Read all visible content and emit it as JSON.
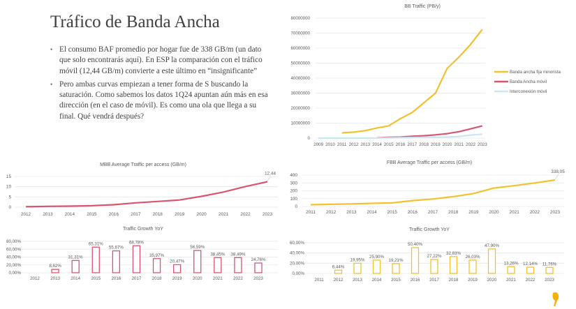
{
  "slide": {
    "title": "Tráfico de Banda Ancha",
    "bullets": [
      "El consumo BAF promedio por hogar fue de 338 GB/m (un dato que solo encontrarás aquí). En ESP la comparación con el tráfico móvil (12,44 GB/m) convierte a este último en “insignificante”",
      "Pero ambas curvas empiezan a tener forma de S buscando la saturación. Como sabemos los datos 1Q24 apuntan aún más en esa dirección (en el caso de móvil). Es como una ola que llega a su final. Qué vendrá después?"
    ],
    "logo": "yellow-comma-logo"
  },
  "colors": {
    "fixed": "#F2C12E",
    "mobile": "#D9546E",
    "interconnect": "#C9E6F2",
    "grid": "#E6E6E6"
  },
  "chart_data": [
    {
      "id": "bb",
      "type": "line",
      "title": "BB Traffic (PB/y)",
      "categories": [
        "2009",
        "2010",
        "2011",
        "2012",
        "2013",
        "2014",
        "2015",
        "2016",
        "2017",
        "2018",
        "2019",
        "2020",
        "2021",
        "2022",
        "2023"
      ],
      "yticks": [
        "0",
        "10000000",
        "20000000",
        "30000000",
        "40000000",
        "50000000",
        "60000000",
        "70000000",
        "80000000"
      ],
      "ylim": [
        0,
        80000000
      ],
      "grid": true,
      "legend": "right",
      "series": [
        {
          "name": "Banda ancha fija minorista",
          "color": "#F2C12E",
          "values": [
            null,
            null,
            3500000,
            4000000,
            5000000,
            6800000,
            8200000,
            13000000,
            17000000,
            23500000,
            30000000,
            46500000,
            54000000,
            62500000,
            72500000
          ]
        },
        {
          "name": "Banda Ancha móvil",
          "color": "#D9546E",
          "values": [
            null,
            null,
            null,
            null,
            null,
            200000,
            500000,
            700000,
            1200000,
            1600000,
            2200000,
            3000000,
            4300000,
            6200000,
            8200000
          ]
        },
        {
          "name": "Interconexión móvil",
          "color": "#C9E6F2",
          "values": [
            0,
            0,
            0,
            0,
            0,
            100000,
            200000,
            300000,
            400000,
            500000,
            600000,
            700000,
            1100000,
            2000000,
            2600000
          ]
        }
      ]
    },
    {
      "id": "mbb",
      "type": "line",
      "title": "MBB Average Traffic per access (GB/m)",
      "categories": [
        "2012",
        "2013",
        "2014",
        "2015",
        "2016",
        "2017",
        "2018",
        "2019",
        "2020",
        "2021",
        "2022",
        "2023"
      ],
      "yticks": [
        "0",
        "5",
        "10",
        "15"
      ],
      "ylim": [
        0,
        15
      ],
      "grid": true,
      "series": [
        {
          "color": "#D9546E",
          "values": [
            0.2,
            0.4,
            0.5,
            0.7,
            1.2,
            2.1,
            2.8,
            3.5,
            5.3,
            7.4,
            10.1,
            12.44
          ]
        }
      ],
      "annotation": "12,44"
    },
    {
      "id": "mbb_growth",
      "type": "bar",
      "title": "Traffic Growth YoY",
      "categories": [
        "2012",
        "2013",
        "2014",
        "2015",
        "2016",
        "2017",
        "2018",
        "2019",
        "2020",
        "2021",
        "2022",
        "2023"
      ],
      "yticks": [
        "0,00%",
        "20,00%",
        "40,00%",
        "60,00%",
        "80,00%"
      ],
      "ylim": [
        0,
        80
      ],
      "grid": true,
      "color": "#D9546E",
      "values": [
        null,
        8.62,
        31.31,
        65.31,
        55.67,
        68.78,
        35.97,
        20.47,
        56.59,
        38.45,
        38.49,
        24.76
      ],
      "labels": [
        "",
        "8,62%",
        "31,31%",
        "65,31%",
        "55,67%",
        "68,78%",
        "35,97%",
        "20,47%",
        "56,59%",
        "38,45%",
        "38,49%",
        "24,76%"
      ]
    },
    {
      "id": "fbb",
      "type": "line",
      "title": "FBB Average Traffic per access (GB/m)",
      "categories": [
        "2011",
        "2012",
        "2013",
        "2014",
        "2015",
        "2016",
        "2017",
        "2018",
        "2019",
        "2020",
        "2021",
        "2022",
        "2023"
      ],
      "yticks": [
        "0",
        "100",
        "200",
        "300",
        "400"
      ],
      "ylim": [
        0,
        400
      ],
      "grid": true,
      "series": [
        {
          "color": "#F2C12E",
          "values": [
            22,
            28,
            33,
            40,
            45,
            75,
            95,
            125,
            165,
            235,
            265,
            300,
            338.05
          ]
        }
      ],
      "annotation": "338,05"
    },
    {
      "id": "fbb_growth",
      "type": "bar",
      "title": "Traffic Growth YoY",
      "categories": [
        "2011",
        "2012",
        "2013",
        "2014",
        "2015",
        "2016",
        "2017",
        "2018",
        "2019",
        "2020",
        "2021",
        "2022",
        "2023"
      ],
      "yticks": [
        "0,00%",
        "20,00%",
        "40,00%",
        "60,00%"
      ],
      "ylim": [
        0,
        60
      ],
      "grid": true,
      "color": "#F2C12E",
      "values": [
        null,
        6.44,
        19.95,
        25.9,
        19.21,
        50.4,
        27.22,
        32.83,
        26.03,
        47.9,
        13.26,
        12.14,
        11.76
      ],
      "labels": [
        "",
        "6,44%",
        "19,95%",
        "25,90%",
        "19,21%",
        "50,40%",
        "27,22%",
        "32,83%",
        "26,03%",
        "47,90%",
        "13,26%",
        "12,14%",
        "11,76%"
      ]
    }
  ]
}
